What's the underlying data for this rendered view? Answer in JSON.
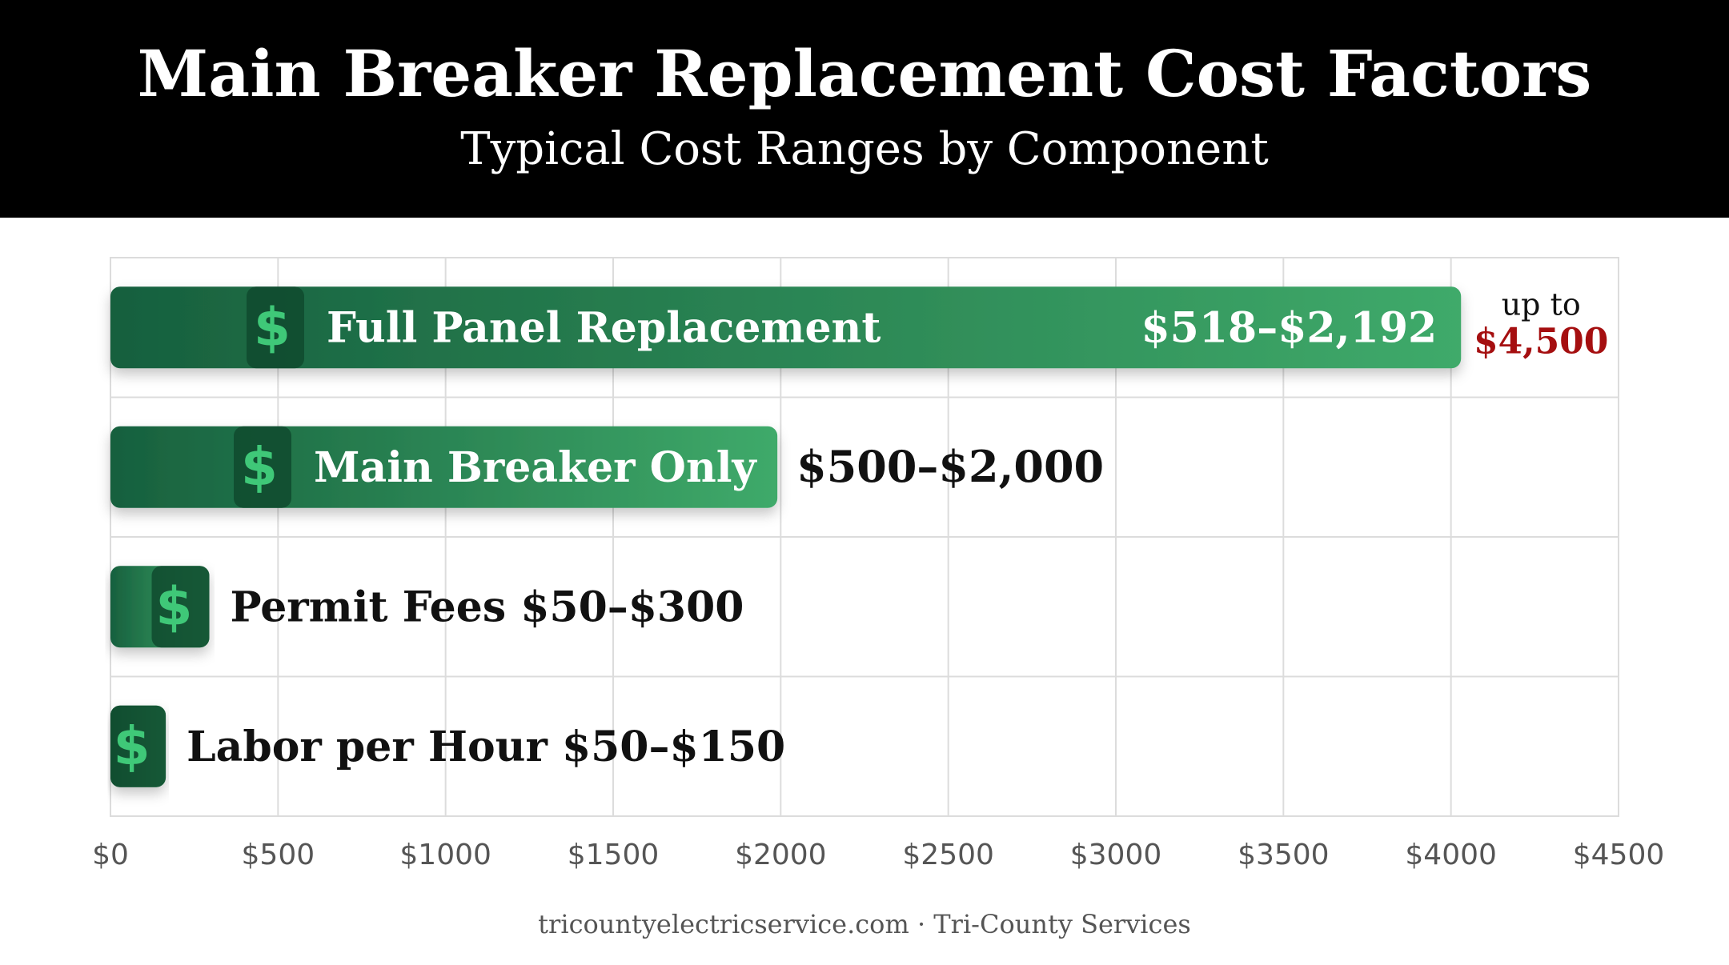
{
  "header": {
    "title": "Main Breaker Replacement Cost Factors",
    "subtitle": "Typical Cost Ranges by Component"
  },
  "footer": {
    "text": "tricountyelectricservice.com · Tri-County Services"
  },
  "colors": {
    "bar_dark": "#17603e",
    "bar_light": "#3faa6a",
    "icon_fill": "#0f4a2e",
    "icon_glyph": "#3fc878",
    "grid": "#dcdcdc",
    "tick_text": "#555555",
    "highlight": "#a50f10"
  },
  "chart_data": {
    "type": "bar",
    "orientation": "horizontal",
    "xlim": [
      0,
      4500
    ],
    "ticks": [
      0,
      500,
      1000,
      1500,
      2000,
      2500,
      3000,
      3500,
      4000,
      4500
    ],
    "tick_labels": [
      "$0",
      "$500",
      "$1000",
      "$1500",
      "$2000",
      "$2500",
      "$3000",
      "$3500",
      "$4000",
      "$4500"
    ],
    "grid": true,
    "bars": [
      {
        "label": "Full Panel Replacement",
        "value": 4030,
        "range_label": "$518–$2,192",
        "label_position": "inside",
        "note_prefix": "up to",
        "note_value": "$4,500"
      },
      {
        "label": "Main Breaker Only",
        "value": 1990,
        "range_label": "$500–$2,000",
        "label_position": "outside"
      },
      {
        "label": "Permit Fees $50–$300",
        "value": 295,
        "label_position": "outside"
      },
      {
        "label": "Labor per Hour $50–$150",
        "value": 165,
        "label_position": "outside"
      }
    ],
    "icon": "dollar-icon"
  }
}
